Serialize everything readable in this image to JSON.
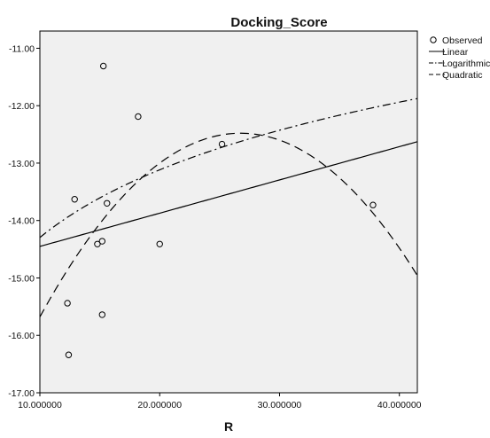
{
  "chart_data": {
    "type": "scatter",
    "title": "Docking_Score",
    "xlabel": "R",
    "ylabel": "",
    "xlim": [
      10.0,
      41.5
    ],
    "ylim": [
      -17.0,
      -10.7
    ],
    "x_ticks": [
      10.0,
      20.0,
      30.0,
      40.0
    ],
    "x_tick_labels": [
      "10.000000",
      "20.000000",
      "30.000000",
      "40.000000"
    ],
    "y_ticks": [
      -17.0,
      -16.0,
      -15.0,
      -14.0,
      -13.0,
      -12.0,
      -11.0
    ],
    "y_tick_labels": [
      "-17.00",
      "-16.00",
      "-15.00",
      "-14.00",
      "-13.00",
      "-12.00",
      "-11.00"
    ],
    "grid": false,
    "legend_position": "right",
    "observed": {
      "name": "Observed",
      "points": [
        {
          "x": 12.3,
          "y": -15.44
        },
        {
          "x": 12.4,
          "y": -16.34
        },
        {
          "x": 12.9,
          "y": -13.63
        },
        {
          "x": 14.8,
          "y": -14.41
        },
        {
          "x": 15.2,
          "y": -15.64
        },
        {
          "x": 15.2,
          "y": -14.36
        },
        {
          "x": 15.3,
          "y": -11.31
        },
        {
          "x": 15.6,
          "y": -13.7
        },
        {
          "x": 18.2,
          "y": -12.19
        },
        {
          "x": 20.0,
          "y": -14.41
        },
        {
          "x": 25.2,
          "y": -12.67
        },
        {
          "x": 37.8,
          "y": -13.73
        }
      ]
    },
    "fits": [
      {
        "name": "Linear",
        "style": "solid",
        "model": "linear",
        "coefficients": [
          -15.03,
          0.0579
        ]
      },
      {
        "name": "Logarithmic",
        "style": "dashdot",
        "model": "logarithmic",
        "coefficients": [
          -18.21,
          1.7
        ]
      },
      {
        "name": "Quadratic",
        "style": "dashed",
        "model": "quadratic",
        "coefficients": [
          -20.64,
          0.61,
          -0.0114
        ]
      }
    ]
  }
}
